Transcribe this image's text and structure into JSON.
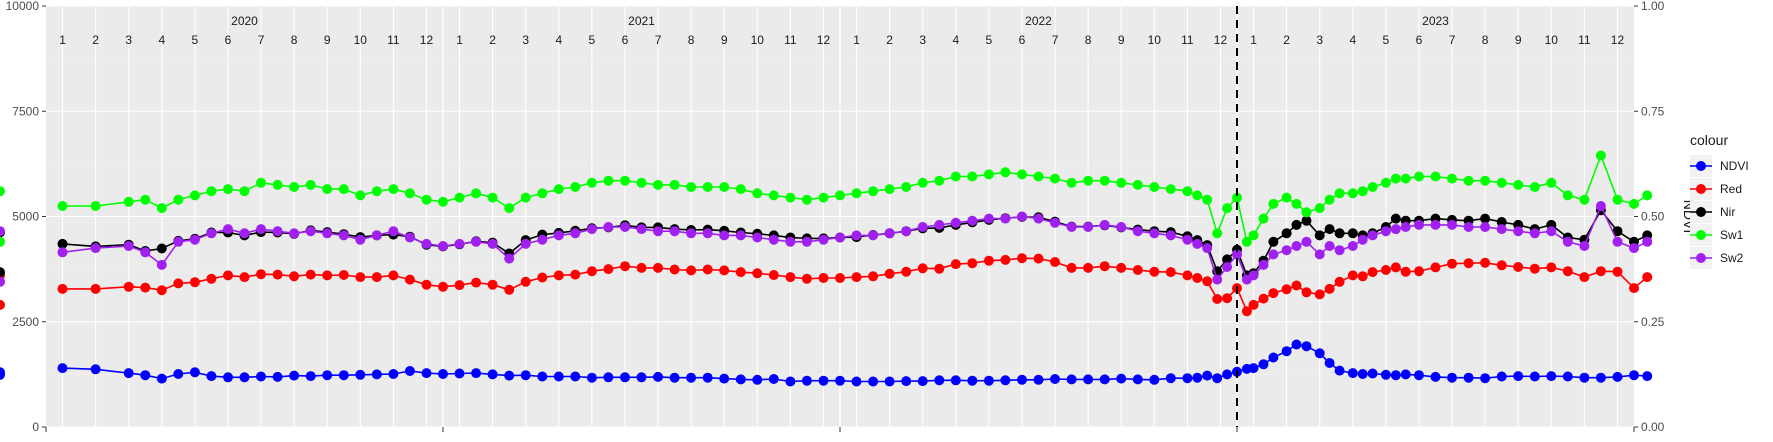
{
  "chart_data": {
    "type": "line",
    "title": "",
    "xlabel": "",
    "ylabel": "",
    "y2label": "NDVI",
    "ylim": [
      0,
      10000
    ],
    "y2lim": [
      0,
      1
    ],
    "yticks": [
      "0",
      "2500",
      "5000",
      "7500",
      "10000"
    ],
    "y2ticks": [
      "0.00",
      "0.25",
      "0.50",
      "0.75",
      "1.00"
    ],
    "grid": true,
    "legend_position": "right",
    "legend_title": "colour",
    "years": [
      {
        "label": "2020",
        "months": [
          "1",
          "2",
          "3",
          "4",
          "5",
          "6",
          "7",
          "8",
          "9",
          "10",
          "11",
          "12"
        ]
      },
      {
        "label": "2021",
        "months": [
          "1",
          "2",
          "3",
          "4",
          "5",
          "6",
          "7",
          "8",
          "9",
          "10",
          "11",
          "12"
        ]
      },
      {
        "label": "2022",
        "months": [
          "1",
          "2",
          "3",
          "4",
          "5",
          "6",
          "7",
          "8",
          "9",
          "10",
          "11",
          "12"
        ]
      },
      {
        "label": "2023",
        "months": [
          "1",
          "2",
          "3",
          "4",
          "5",
          "6",
          "7",
          "8",
          "9",
          "10",
          "11",
          "12"
        ]
      }
    ],
    "vline_month_index": 36,
    "x_month_index": [
      0.0,
      1.0,
      2.0,
      2.5,
      3.0,
      3.5,
      4.0,
      4.5,
      5.0,
      5.5,
      6.0,
      6.5,
      7.0,
      7.5,
      8.0,
      8.5,
      9.0,
      9.5,
      10.0,
      10.5,
      11.0,
      11.5,
      12.0,
      12.5,
      13.0,
      13.5,
      14.0,
      14.5,
      15.0,
      15.5,
      16.0,
      16.5,
      17.0,
      17.5,
      18.0,
      18.5,
      19.0,
      19.5,
      20.0,
      20.5,
      21.0,
      21.5,
      22.0,
      22.5,
      23.0,
      23.5,
      24.0,
      24.5,
      25.0,
      25.5,
      26.0,
      26.5,
      27.0,
      27.5,
      28.0,
      28.5,
      29.0,
      29.5,
      30.0,
      30.5,
      31.0,
      31.5,
      32.0,
      32.5,
      33.0,
      33.5,
      34.0,
      34.3,
      34.6,
      34.9,
      35.2,
      35.5,
      35.8,
      36.0,
      36.3,
      36.6,
      37.0,
      37.3,
      37.6,
      38.0,
      38.3,
      38.6,
      39.0,
      39.3,
      39.6,
      40.0,
      40.3,
      40.6,
      41.0,
      41.5,
      42.0,
      42.5,
      43.0,
      43.5,
      44.0,
      44.5,
      45.0,
      45.5,
      46.0,
      46.5,
      47.0,
      47.5,
      47.9
    ],
    "series": [
      {
        "name": "NDVI",
        "color": "#0000ff",
        "values": [
          1400,
          1370,
          1280,
          1230,
          1150,
          1260,
          1300,
          1210,
          1180,
          1180,
          1200,
          1190,
          1220,
          1210,
          1230,
          1230,
          1240,
          1250,
          1260,
          1330,
          1280,
          1260,
          1270,
          1280,
          1250,
          1220,
          1230,
          1200,
          1200,
          1200,
          1170,
          1180,
          1180,
          1180,
          1190,
          1170,
          1170,
          1170,
          1150,
          1130,
          1120,
          1140,
          1080,
          1100,
          1100,
          1100,
          1080,
          1080,
          1080,
          1090,
          1090,
          1110,
          1110,
          1100,
          1100,
          1110,
          1120,
          1120,
          1140,
          1130,
          1130,
          1130,
          1150,
          1130,
          1120,
          1160,
          1160,
          1170,
          1220,
          1160,
          1250,
          1310,
          1380,
          1400,
          1490,
          1650,
          1800,
          1960,
          1920,
          1750,
          1520,
          1340,
          1280,
          1260,
          1270,
          1240,
          1230,
          1250,
          1230,
          1190,
          1170,
          1170,
          1160,
          1200,
          1210,
          1200,
          1210,
          1200,
          1170,
          1170,
          1190,
          1230,
          1210,
          1240,
          1300
        ]
      },
      {
        "name": "Red",
        "color": "#ff0000",
        "values": [
          3280,
          3280,
          3330,
          3310,
          3250,
          3410,
          3440,
          3520,
          3600,
          3560,
          3630,
          3620,
          3580,
          3620,
          3600,
          3610,
          3560,
          3560,
          3600,
          3500,
          3380,
          3330,
          3370,
          3430,
          3380,
          3260,
          3450,
          3550,
          3600,
          3620,
          3700,
          3750,
          3820,
          3780,
          3780,
          3740,
          3720,
          3740,
          3720,
          3680,
          3650,
          3610,
          3560,
          3520,
          3540,
          3540,
          3560,
          3580,
          3640,
          3690,
          3770,
          3760,
          3870,
          3890,
          3950,
          3970,
          4010,
          4000,
          3920,
          3780,
          3780,
          3820,
          3780,
          3730,
          3690,
          3680,
          3600,
          3540,
          3460,
          3040,
          3060,
          3300,
          2750,
          2900,
          3050,
          3180,
          3270,
          3360,
          3200,
          3150,
          3280,
          3450,
          3600,
          3580,
          3680,
          3730,
          3790,
          3690,
          3700,
          3790,
          3880,
          3890,
          3900,
          3840,
          3800,
          3760,
          3790,
          3700,
          3560,
          3700,
          3690,
          3300,
          3560,
          3600,
          2900
        ]
      },
      {
        "name": "Nir",
        "color": "#000000",
        "values": [
          4350,
          4290,
          4330,
          4180,
          4240,
          4420,
          4470,
          4620,
          4620,
          4550,
          4630,
          4620,
          4590,
          4670,
          4630,
          4580,
          4510,
          4550,
          4570,
          4520,
          4330,
          4290,
          4340,
          4410,
          4380,
          4120,
          4440,
          4570,
          4610,
          4660,
          4720,
          4740,
          4790,
          4740,
          4740,
          4700,
          4680,
          4690,
          4660,
          4620,
          4590,
          4550,
          4500,
          4480,
          4480,
          4500,
          4510,
          4560,
          4600,
          4650,
          4720,
          4730,
          4800,
          4860,
          4920,
          4960,
          4990,
          4980,
          4880,
          4760,
          4760,
          4790,
          4740,
          4690,
          4650,
          4630,
          4530,
          4440,
          4320,
          3700,
          3980,
          4210,
          3600,
          3650,
          3950,
          4400,
          4600,
          4800,
          4900,
          4550,
          4700,
          4600,
          4600,
          4550,
          4600,
          4750,
          4950,
          4900,
          4900,
          4950,
          4920,
          4900,
          4950,
          4870,
          4800,
          4700,
          4800,
          4500,
          4450,
          5150,
          4650,
          4400,
          4550,
          4620,
          3680
        ]
      },
      {
        "name": "Sw1",
        "color": "#00ff00",
        "values": [
          5250,
          5250,
          5350,
          5400,
          5200,
          5400,
          5500,
          5600,
          5650,
          5600,
          5800,
          5750,
          5700,
          5750,
          5650,
          5650,
          5500,
          5600,
          5650,
          5550,
          5400,
          5350,
          5450,
          5550,
          5450,
          5200,
          5450,
          5550,
          5650,
          5700,
          5800,
          5850,
          5850,
          5800,
          5750,
          5750,
          5700,
          5700,
          5700,
          5650,
          5550,
          5500,
          5450,
          5400,
          5450,
          5500,
          5550,
          5600,
          5650,
          5700,
          5800,
          5850,
          5950,
          5950,
          6000,
          6050,
          6000,
          5950,
          5900,
          5800,
          5850,
          5850,
          5800,
          5750,
          5700,
          5650,
          5600,
          5500,
          5400,
          4600,
          5200,
          5450,
          4400,
          4550,
          4950,
          5300,
          5450,
          5300,
          5100,
          5200,
          5400,
          5550,
          5550,
          5600,
          5700,
          5800,
          5900,
          5900,
          5950,
          5950,
          5900,
          5850,
          5850,
          5800,
          5750,
          5700,
          5800,
          5500,
          5400,
          6450,
          5400,
          5300,
          5500,
          5600,
          4400
        ]
      },
      {
        "name": "Sw2",
        "color": "#a020f0",
        "values": [
          4150,
          4250,
          4300,
          4150,
          3850,
          4400,
          4450,
          4600,
          4700,
          4600,
          4700,
          4650,
          4600,
          4650,
          4600,
          4550,
          4450,
          4550,
          4650,
          4500,
          4350,
          4300,
          4350,
          4400,
          4350,
          4000,
          4350,
          4450,
          4550,
          4600,
          4700,
          4750,
          4750,
          4700,
          4650,
          4650,
          4600,
          4600,
          4550,
          4550,
          4500,
          4450,
          4400,
          4400,
          4450,
          4500,
          4550,
          4550,
          4600,
          4650,
          4750,
          4800,
          4850,
          4900,
          4950,
          4950,
          5000,
          4950,
          4850,
          4750,
          4750,
          4800,
          4750,
          4650,
          4600,
          4550,
          4450,
          4350,
          4250,
          3500,
          3800,
          4100,
          3500,
          3600,
          3850,
          4100,
          4200,
          4300,
          4400,
          4100,
          4300,
          4200,
          4300,
          4450,
          4550,
          4650,
          4700,
          4750,
          4800,
          4800,
          4800,
          4750,
          4750,
          4700,
          4650,
          4600,
          4650,
          4400,
          4300,
          5250,
          4400,
          4250,
          4400,
          4650,
          3450
        ]
      }
    ]
  }
}
